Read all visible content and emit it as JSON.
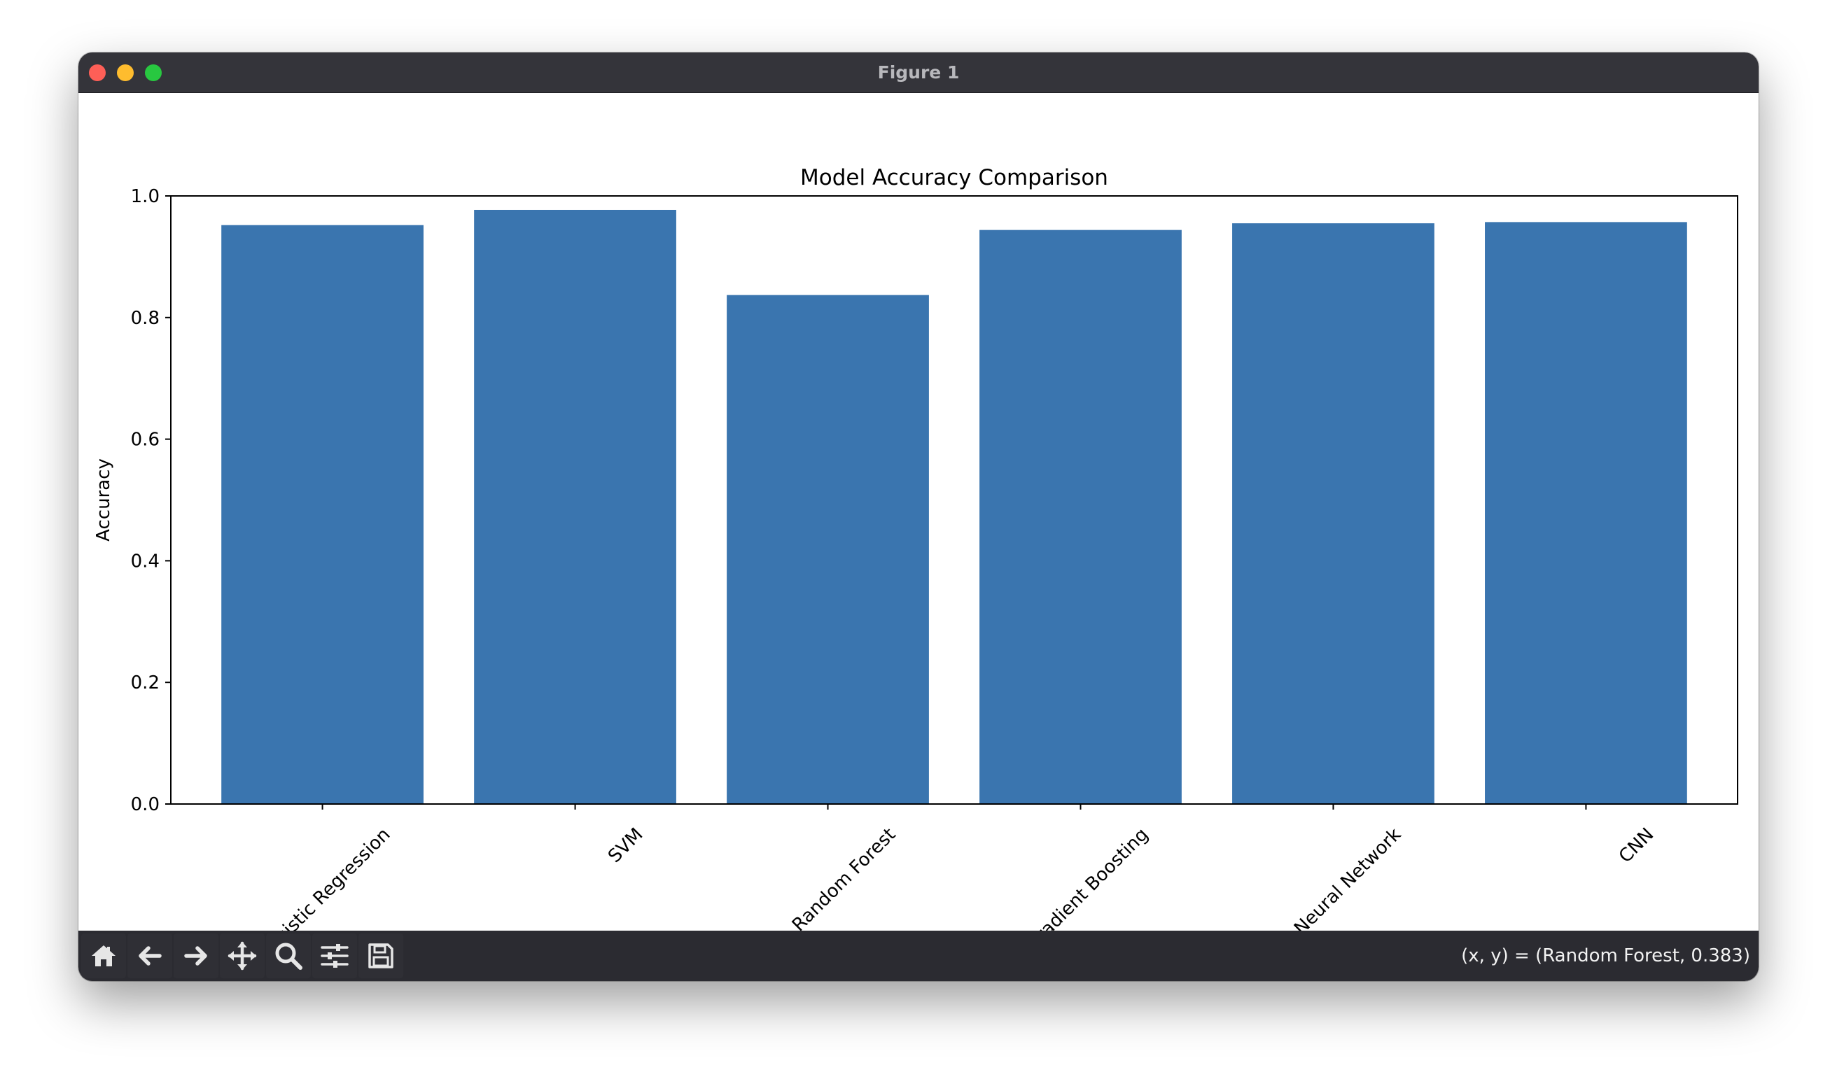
{
  "window": {
    "title": "Figure 1"
  },
  "toolbar": {
    "buttons": [
      {
        "name": "home",
        "icon": "home-icon"
      },
      {
        "name": "back",
        "icon": "arrow-left-icon"
      },
      {
        "name": "forward",
        "icon": "arrow-right-icon"
      },
      {
        "name": "pan",
        "icon": "move-icon"
      },
      {
        "name": "zoom",
        "icon": "magnifier-icon"
      },
      {
        "name": "configure",
        "icon": "sliders-icon"
      },
      {
        "name": "save",
        "icon": "floppy-disk-icon"
      }
    ],
    "coordinates": "(x, y) = (Random Forest, 0.383)"
  },
  "colors": {
    "bar": "#3a75af",
    "titlebar": "#34343a",
    "toolbar": "#2b2b31"
  },
  "chart_data": {
    "type": "bar",
    "title": "Model Accuracy Comparison",
    "xlabel": "",
    "ylabel": "Accuracy",
    "categories": [
      "Logistic Regression",
      "SVM",
      "Random Forest",
      "Gradient Boosting",
      "Neural Network",
      "CNN"
    ],
    "values": [
      0.952,
      0.977,
      0.837,
      0.944,
      0.955,
      0.957
    ],
    "ylim": [
      0,
      1.0
    ],
    "yticks": [
      "0.0",
      "0.2",
      "0.4",
      "0.6",
      "0.8",
      "1.0"
    ],
    "xtick_rotation": 45,
    "grid": false,
    "legend": "none"
  }
}
